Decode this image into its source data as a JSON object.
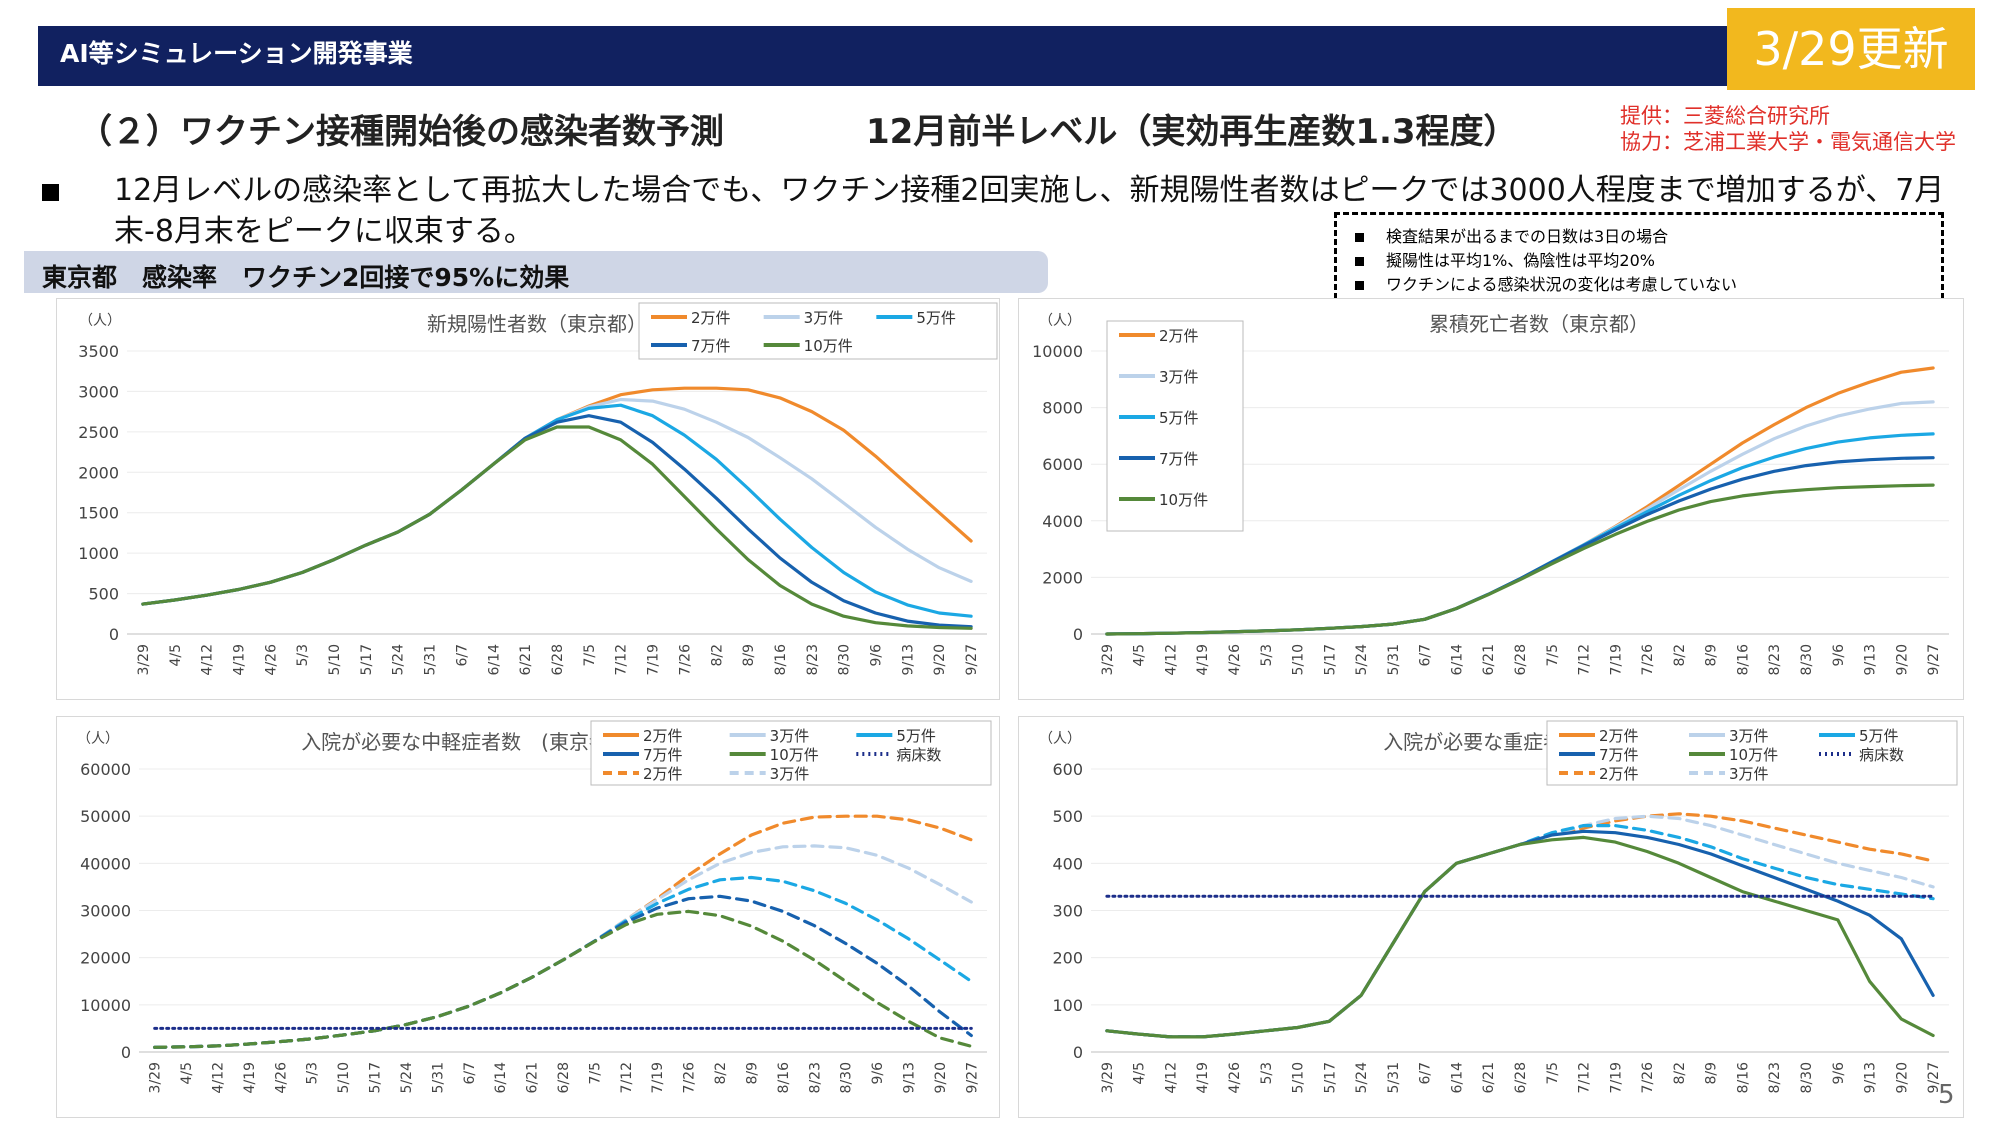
{
  "header": {
    "section_title": "AI等シミュレーション開発事業",
    "update_badge": "3/29更新",
    "heading_left": "（２）ワクチン接種開始後の感染者数予測",
    "heading_right": "12月前半レベル（実効再生産数1.3程度）",
    "credit_provider": "提供：三菱総合研究所",
    "credit_cooperation": "協力：芝浦工業大学・電気通信大学"
  },
  "bullet_text": "12月レベルの感染率として再拡大した場合でも、ワクチン接種2回実施し、新規陽性者数はピークでは3000人程度まで増加するが、7月末-8月末をピークに収束する。",
  "notes": [
    "検査結果が出るまでの日数は3日の場合",
    "擬陽性は平均1%、偽陰性は平均20%",
    "ワクチンによる感染状況の変化は考慮していない"
  ],
  "band_label": "東京都　感染率　ワクチン2回接で95%に効果",
  "page_number": "5",
  "colors": {
    "2man": "#f08a2c",
    "3man": "#bcd2ea",
    "5man": "#1ba8e4",
    "7man": "#1761ae",
    "10man": "#55893a",
    "beds": "#1c2e8a",
    "header_bg": "#112160",
    "badge": "#f2b81e",
    "credit": "#e0302a"
  },
  "chart_data": [
    {
      "id": "new-cases",
      "type": "line",
      "title": "新規陽性者数（東京都）",
      "ylabel": "（人）",
      "ylim": [
        0,
        3500
      ],
      "yticks": [
        0,
        500,
        1000,
        1500,
        2000,
        2500,
        3000,
        3500
      ],
      "x": [
        "3/29",
        "4/5",
        "4/12",
        "4/19",
        "4/26",
        "5/3",
        "5/10",
        "5/17",
        "5/24",
        "5/31",
        "6/7",
        "6/14",
        "6/21",
        "6/28",
        "7/5",
        "7/12",
        "7/19",
        "7/26",
        "8/2",
        "8/9",
        "8/16",
        "8/23",
        "8/30",
        "9/6",
        "9/13",
        "9/20",
        "9/27"
      ],
      "legend": [
        "2万件",
        "3万件",
        "5万件",
        "7万件",
        "10万件"
      ],
      "series": [
        {
          "name": "2万件",
          "color": "#f08a2c",
          "dash": false,
          "values": [
            370,
            420,
            480,
            550,
            640,
            760,
            920,
            1100,
            1260,
            1480,
            1780,
            2100,
            2420,
            2650,
            2820,
            2960,
            3020,
            3040,
            3040,
            3020,
            2920,
            2750,
            2520,
            2200,
            1850,
            1500,
            1150
          ]
        },
        {
          "name": "3万件",
          "color": "#bcd2ea",
          "dash": false,
          "values": [
            370,
            420,
            480,
            550,
            640,
            760,
            920,
            1100,
            1260,
            1480,
            1780,
            2100,
            2420,
            2650,
            2810,
            2900,
            2880,
            2780,
            2620,
            2430,
            2180,
            1920,
            1620,
            1320,
            1050,
            820,
            650
          ]
        },
        {
          "name": "5万件",
          "color": "#1ba8e4",
          "dash": false,
          "values": [
            370,
            420,
            480,
            550,
            640,
            760,
            920,
            1100,
            1260,
            1480,
            1780,
            2100,
            2420,
            2650,
            2790,
            2830,
            2700,
            2460,
            2160,
            1800,
            1420,
            1070,
            760,
            520,
            360,
            260,
            220
          ]
        },
        {
          "name": "7万件",
          "color": "#1761ae",
          "dash": false,
          "values": [
            370,
            420,
            480,
            550,
            640,
            760,
            920,
            1100,
            1260,
            1480,
            1780,
            2100,
            2420,
            2620,
            2700,
            2620,
            2370,
            2040,
            1680,
            1300,
            940,
            640,
            410,
            260,
            160,
            110,
            90
          ]
        },
        {
          "name": "10万件",
          "color": "#55893a",
          "dash": false,
          "values": [
            370,
            420,
            480,
            550,
            640,
            760,
            920,
            1100,
            1260,
            1480,
            1780,
            2100,
            2400,
            2560,
            2560,
            2400,
            2100,
            1700,
            1300,
            920,
            600,
            370,
            220,
            140,
            100,
            80,
            70
          ]
        }
      ]
    },
    {
      "id": "cumulative-deaths",
      "type": "line",
      "title": "累積死亡者数（東京都）",
      "ylabel": "（人）",
      "ylim": [
        0,
        10000
      ],
      "yticks": [
        0,
        2000,
        4000,
        6000,
        8000,
        10000
      ],
      "x": [
        "3/29",
        "4/5",
        "4/12",
        "4/19",
        "4/26",
        "5/3",
        "5/10",
        "5/17",
        "5/24",
        "5/31",
        "6/7",
        "6/14",
        "6/21",
        "6/28",
        "7/5",
        "7/12",
        "7/19",
        "7/26",
        "8/2",
        "8/9",
        "8/16",
        "8/23",
        "8/30",
        "9/6",
        "9/13",
        "9/20",
        "9/27"
      ],
      "legend": [
        "2万件",
        "3万件",
        "5万件",
        "7万件",
        "10万件"
      ],
      "series": [
        {
          "name": "2万件",
          "color": "#f08a2c",
          "dash": false,
          "values": [
            0,
            10,
            30,
            50,
            80,
            110,
            150,
            200,
            260,
            350,
            520,
            900,
            1400,
            1950,
            2550,
            3150,
            3800,
            4500,
            5250,
            6000,
            6750,
            7400,
            8000,
            8500,
            8900,
            9250,
            9400
          ]
        },
        {
          "name": "3万件",
          "color": "#bcd2ea",
          "dash": false,
          "values": [
            0,
            10,
            30,
            50,
            80,
            110,
            150,
            200,
            260,
            350,
            520,
            900,
            1400,
            1950,
            2550,
            3150,
            3780,
            4420,
            5100,
            5750,
            6350,
            6900,
            7350,
            7700,
            7950,
            8150,
            8200
          ]
        },
        {
          "name": "5万件",
          "color": "#1ba8e4",
          "dash": false,
          "values": [
            0,
            10,
            30,
            50,
            80,
            110,
            150,
            200,
            260,
            350,
            520,
            900,
            1400,
            1950,
            2550,
            3140,
            3740,
            4320,
            4900,
            5420,
            5880,
            6250,
            6550,
            6780,
            6930,
            7020,
            7070
          ]
        },
        {
          "name": "7万件",
          "color": "#1761ae",
          "dash": false,
          "values": [
            0,
            10,
            30,
            50,
            80,
            110,
            150,
            200,
            260,
            350,
            520,
            900,
            1400,
            1950,
            2540,
            3120,
            3680,
            4220,
            4700,
            5120,
            5470,
            5750,
            5950,
            6080,
            6160,
            6210,
            6230
          ]
        },
        {
          "name": "10万件",
          "color": "#55893a",
          "dash": false,
          "values": [
            0,
            10,
            30,
            50,
            80,
            110,
            150,
            200,
            260,
            350,
            520,
            900,
            1390,
            1920,
            2480,
            3020,
            3520,
            3980,
            4380,
            4680,
            4880,
            5010,
            5100,
            5170,
            5210,
            5240,
            5260
          ]
        }
      ]
    },
    {
      "id": "moderate-hosp",
      "type": "line",
      "title": "入院が必要な中軽症者数　(東京都)",
      "ylabel": "（人）",
      "ylim": [
        0,
        60000
      ],
      "yticks": [
        0,
        10000,
        20000,
        30000,
        40000,
        50000,
        60000
      ],
      "x": [
        "3/29",
        "4/5",
        "4/12",
        "4/19",
        "4/26",
        "5/3",
        "5/10",
        "5/17",
        "5/24",
        "5/31",
        "6/7",
        "6/14",
        "6/21",
        "6/28",
        "7/5",
        "7/12",
        "7/19",
        "7/26",
        "8/2",
        "8/9",
        "8/16",
        "8/23",
        "8/30",
        "9/6",
        "9/13",
        "9/20",
        "9/27"
      ],
      "legend": [
        "2万件",
        "3万件",
        "5万件",
        "7万件",
        "10万件",
        "病床数",
        "2万件",
        "3万件"
      ],
      "series": [
        {
          "name": "2万件",
          "color": "#f08a2c",
          "dash": true,
          "values": [
            1000,
            1100,
            1300,
            1700,
            2200,
            2800,
            3600,
            4500,
            5800,
            7500,
            9700,
            12500,
            15800,
            19500,
            23500,
            28000,
            32500,
            37500,
            42000,
            46000,
            48500,
            49800,
            50000,
            50000,
            49200,
            47500,
            45000
          ]
        },
        {
          "name": "3万件",
          "color": "#bcd2ea",
          "dash": true,
          "values": [
            1000,
            1100,
            1300,
            1700,
            2200,
            2800,
            3600,
            4500,
            5800,
            7500,
            9700,
            12500,
            15800,
            19500,
            23500,
            28000,
            32300,
            36500,
            40000,
            42300,
            43500,
            43700,
            43300,
            41700,
            39000,
            35500,
            31800
          ]
        },
        {
          "name": "5万件",
          "color": "#1ba8e4",
          "dash": true,
          "values": [
            1000,
            1100,
            1300,
            1700,
            2200,
            2800,
            3600,
            4500,
            5800,
            7500,
            9700,
            12500,
            15800,
            19500,
            23500,
            27800,
            31500,
            34500,
            36500,
            37000,
            36200,
            34200,
            31500,
            28000,
            24000,
            19500,
            15000
          ]
        },
        {
          "name": "7万件",
          "color": "#1761ae",
          "dash": true,
          "values": [
            1000,
            1100,
            1300,
            1700,
            2200,
            2800,
            3600,
            4500,
            5800,
            7500,
            9700,
            12500,
            15800,
            19500,
            23500,
            27500,
            30500,
            32500,
            33000,
            32000,
            29800,
            26800,
            23000,
            18800,
            14000,
            8500,
            3500
          ]
        },
        {
          "name": "10万件",
          "color": "#55893a",
          "dash": true,
          "values": [
            1000,
            1100,
            1300,
            1700,
            2200,
            2800,
            3600,
            4500,
            5800,
            7500,
            9700,
            12500,
            15800,
            19500,
            23400,
            27000,
            29200,
            29800,
            28900,
            26700,
            23500,
            19500,
            15000,
            10500,
            6500,
            3000,
            1200
          ]
        },
        {
          "name": "病床数",
          "color": "#1c2e8a",
          "dash": "dot",
          "values": [
            5000,
            5000,
            5000,
            5000,
            5000,
            5000,
            5000,
            5000,
            5000,
            5000,
            5000,
            5000,
            5000,
            5000,
            5000,
            5000,
            5000,
            5000,
            5000,
            5000,
            5000,
            5000,
            5000,
            5000,
            5000,
            5000,
            5000
          ]
        }
      ]
    },
    {
      "id": "severe-hosp",
      "type": "line",
      "title": "入院が必要な重症者数　(東京都)",
      "ylabel": "（人）",
      "ylim": [
        0,
        600
      ],
      "yticks": [
        0,
        100,
        200,
        300,
        400,
        500,
        600
      ],
      "x": [
        "3/29",
        "4/5",
        "4/12",
        "4/19",
        "4/26",
        "5/3",
        "5/10",
        "5/17",
        "5/24",
        "5/31",
        "6/7",
        "6/14",
        "6/21",
        "6/28",
        "7/5",
        "7/12",
        "7/19",
        "7/26",
        "8/2",
        "8/9",
        "8/16",
        "8/23",
        "8/30",
        "9/6",
        "9/13",
        "9/20",
        "9/27"
      ],
      "legend": [
        "2万件",
        "3万件",
        "5万件",
        "7万件",
        "10万件",
        "病床数",
        "2万件",
        "3万件"
      ],
      "series": [
        {
          "name": "2万件",
          "color": "#f08a2c",
          "dash": true,
          "values": [
            45,
            38,
            32,
            32,
            38,
            45,
            52,
            65,
            120,
            230,
            340,
            400,
            420,
            440,
            460,
            475,
            490,
            500,
            505,
            500,
            490,
            475,
            460,
            445,
            430,
            420,
            405
          ]
        },
        {
          "name": "3万件",
          "color": "#bcd2ea",
          "dash": true,
          "values": [
            45,
            38,
            32,
            32,
            38,
            45,
            52,
            65,
            120,
            230,
            340,
            400,
            420,
            440,
            460,
            480,
            495,
            500,
            495,
            480,
            460,
            440,
            420,
            400,
            385,
            370,
            350
          ]
        },
        {
          "name": "5万件",
          "color": "#1ba8e4",
          "dash": true,
          "values": [
            45,
            38,
            32,
            32,
            38,
            45,
            52,
            65,
            120,
            230,
            340,
            400,
            420,
            440,
            465,
            480,
            480,
            470,
            455,
            435,
            410,
            390,
            370,
            355,
            345,
            335,
            325
          ]
        },
        {
          "name": "7万件",
          "color": "#1761ae",
          "dash": false,
          "values": [
            45,
            38,
            32,
            32,
            38,
            45,
            52,
            65,
            120,
            230,
            340,
            400,
            420,
            440,
            460,
            468,
            465,
            455,
            440,
            420,
            395,
            370,
            345,
            320,
            290,
            240,
            120
          ]
        },
        {
          "name": "10万件",
          "color": "#55893a",
          "dash": false,
          "values": [
            45,
            38,
            32,
            32,
            38,
            45,
            52,
            65,
            120,
            230,
            340,
            400,
            420,
            440,
            450,
            455,
            445,
            425,
            400,
            370,
            340,
            320,
            300,
            280,
            150,
            70,
            35
          ]
        },
        {
          "name": "病床数",
          "color": "#1c2e8a",
          "dash": "dot",
          "values": [
            330,
            330,
            330,
            330,
            330,
            330,
            330,
            330,
            330,
            330,
            330,
            330,
            330,
            330,
            330,
            330,
            330,
            330,
            330,
            330,
            330,
            330,
            330,
            330,
            330,
            330,
            330
          ]
        }
      ]
    }
  ]
}
